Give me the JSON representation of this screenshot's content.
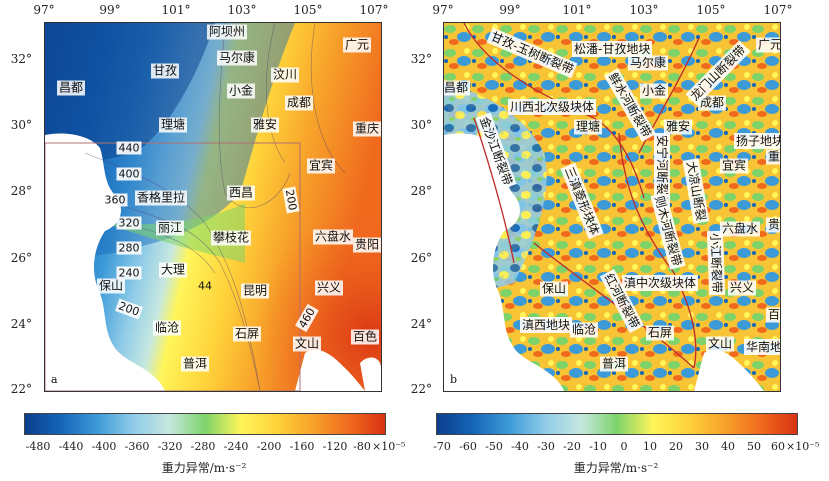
{
  "panel_a": {
    "label": "a",
    "x_ticks": [
      "97°",
      "99°",
      "101°",
      "103°",
      "105°",
      "107°"
    ],
    "y_ticks": [
      "32°",
      "30°",
      "28°",
      "26°",
      "24°",
      "22°"
    ],
    "places": [
      {
        "name": "阿坝州"
      },
      {
        "name": "广元"
      },
      {
        "name": "马尔康"
      },
      {
        "name": "甘孜"
      },
      {
        "name": "汶川"
      },
      {
        "name": "昌都"
      },
      {
        "name": "小金"
      },
      {
        "name": "成都"
      },
      {
        "name": "理塘"
      },
      {
        "name": "雅安"
      },
      {
        "name": "重庆"
      },
      {
        "name": "宜宾"
      },
      {
        "name": "香格里拉"
      },
      {
        "name": "西昌"
      },
      {
        "name": "丽江"
      },
      {
        "name": "攀枝花"
      },
      {
        "name": "六盘水"
      },
      {
        "name": "贵阳"
      },
      {
        "name": "大理"
      },
      {
        "name": "保山"
      },
      {
        "name": "昆明"
      },
      {
        "name": "兴义"
      },
      {
        "name": "临沧"
      },
      {
        "name": "石屏"
      },
      {
        "name": "文山"
      },
      {
        "name": "百色"
      },
      {
        "name": "普洱"
      }
    ],
    "contours": [
      "440",
      "400",
      "360",
      "320",
      "280",
      "240",
      "200",
      "44",
      "200",
      "460"
    ],
    "colorbar": {
      "ticks": [
        "-480",
        "-440",
        "-400",
        "-360",
        "-320",
        "-280",
        "-240",
        "-200",
        "-160",
        "-120",
        "-80"
      ],
      "unit": "×10⁻⁵",
      "title": "重力异常/m·s⁻²",
      "colors": [
        "#0b3e8c",
        "#1565b8",
        "#3d9ad8",
        "#8fcbe8",
        "#c6e8e0",
        "#7dd36a",
        "#fff55a",
        "#ffd23a",
        "#f7a12a",
        "#f06a1e",
        "#d83214"
      ]
    }
  },
  "panel_b": {
    "label": "b",
    "x_ticks": [
      "97°",
      "99°",
      "101°",
      "103°",
      "105°",
      "107°"
    ],
    "y_ticks": [
      "32°",
      "30°",
      "28°",
      "26°",
      "24°",
      "22°"
    ],
    "places": [
      {
        "name": "广元"
      },
      {
        "name": "马尔康"
      },
      {
        "name": "昌都"
      },
      {
        "name": "小金"
      },
      {
        "name": "成都"
      },
      {
        "name": "理塘"
      },
      {
        "name": "雅安"
      },
      {
        "name": "重庆"
      },
      {
        "name": "宜宾"
      },
      {
        "name": "六盘水"
      },
      {
        "name": "贵阳"
      },
      {
        "name": "保山"
      },
      {
        "name": "兴义"
      },
      {
        "name": "百色"
      },
      {
        "name": "临沧"
      },
      {
        "name": "石屏"
      },
      {
        "name": "文山"
      },
      {
        "name": "普洱"
      }
    ],
    "features": [
      {
        "name": "甘孜-玉树断裂带"
      },
      {
        "name": "松潘-甘孜地块"
      },
      {
        "name": "龙门山断裂带"
      },
      {
        "name": "川西北次级块体"
      },
      {
        "name": "鲜水河断裂带"
      },
      {
        "name": "扬子地块"
      },
      {
        "name": "金沙江断裂带"
      },
      {
        "name": "三滇菱形块体"
      },
      {
        "name": "安宁河断裂带"
      },
      {
        "name": "大凉山断裂"
      },
      {
        "name": "则木河断裂带"
      },
      {
        "name": "小江断裂带"
      },
      {
        "name": "红河断裂带"
      },
      {
        "name": "滇中次级块体"
      },
      {
        "name": "滇西地块"
      },
      {
        "name": "华南地块"
      }
    ],
    "colorbar": {
      "ticks": [
        "-70",
        "-60",
        "-50",
        "-40",
        "-30",
        "-20",
        "-10",
        "0",
        "10",
        "20",
        "30",
        "40",
        "50",
        "60"
      ],
      "unit": "×10⁻⁵",
      "title": "重力异常/m·s⁻²",
      "colors": [
        "#0b3e8c",
        "#1565b8",
        "#3d9ad8",
        "#8fcbe8",
        "#c6e8e0",
        "#7dd36a",
        "#fff55a",
        "#ffd23a",
        "#f7a12a",
        "#f06a1e",
        "#d83214"
      ]
    }
  }
}
